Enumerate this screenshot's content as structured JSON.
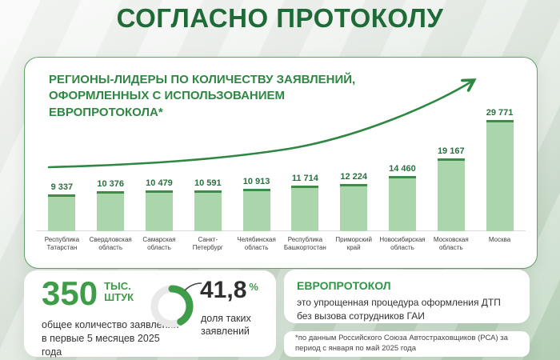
{
  "page": {
    "title": "СОГЛАСНО ПРОТОКОЛУ"
  },
  "chart_card": {
    "heading_lines": [
      "РЕГИОНЫ-ЛИДЕРЫ ПО КОЛИЧЕСТВУ ЗАЯВЛЕНИЙ,",
      "ОФОРМЛЕННЫХ С ИСПОЛЬЗОВАНИЕМ",
      "ЕВРОПРОТОКОЛА*"
    ]
  },
  "chart_data": {
    "type": "bar",
    "title": "РЕГИОНЫ-ЛИДЕРЫ ПО КОЛИЧЕСТВУ ЗАЯВЛЕНИЙ, ОФОРМЛЕННЫХ С ИСПОЛЬЗОВАНИЕМ ЕВРОПРОТОКОЛА*",
    "categories": [
      "Республика Татарстан",
      "Свердловская область",
      "Самарская область",
      "Санкт-Петербург",
      "Челябинская область",
      "Республика Башкортостан",
      "Приморский край",
      "Новосибирская область",
      "Московская область",
      "Москва"
    ],
    "values": [
      9337,
      10376,
      10479,
      10591,
      10913,
      11714,
      12224,
      14460,
      19167,
      29771
    ],
    "value_labels": [
      "9 337",
      "10 376",
      "10 479",
      "10 591",
      "10 913",
      "11 714",
      "12 224",
      "14 460",
      "19 167",
      "29 771"
    ],
    "xlabel": "",
    "ylabel": "",
    "ylim": [
      0,
      30000
    ],
    "grid": false,
    "legend": null,
    "annotation": "upward trend arrow over bars"
  },
  "summary": {
    "total_number": "350",
    "total_unit_line1": "ТЫС.",
    "total_unit_line2": "ШТУК",
    "total_caption": "общее количество заявлений в первые 5 месяцев 2025 года",
    "share_percent": 41.8,
    "share_display": "41,8",
    "share_sign": "%",
    "share_caption": "доля таких заявлений"
  },
  "info": {
    "title": "ЕВРОПРОТОКОЛ",
    "body": "это упрощенная процедура оформления ДТП без вызова сотрудников ГАИ"
  },
  "footnote": "*по данным Российского Союза Автостраховщиков (РСА) за период с января по май 2025 года",
  "colors": {
    "title_green": "#1e6b37",
    "heading_green": "#2e8742",
    "bar_fill": "#abd5ab",
    "bar_top": "#3e8c48",
    "value_green": "#2b7040",
    "accent_green": "#3f9c49",
    "donut_track": "#e9e9e9",
    "text_dark": "#333333",
    "card_border_green": "#61a169"
  }
}
